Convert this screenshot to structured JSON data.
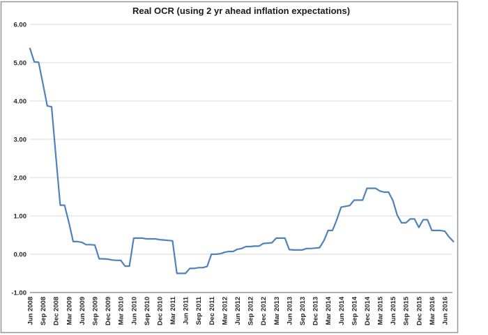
{
  "chart": {
    "title": "Real OCR (using 2 yr ahead inflation expectations)",
    "colors": {
      "line": "#4F81BD",
      "grid": "#D9D9D9",
      "axis": "#7F7F7F",
      "border": "#969696",
      "label": "#262626",
      "background": "#FFFFFF"
    },
    "chart_data": {
      "type": "line",
      "title": "Real OCR (using 2 yr ahead inflation expectations)",
      "xlabel": "",
      "ylabel": "",
      "ylim": [
        -1,
        6
      ],
      "grid": "horizontal",
      "legend": "none",
      "frequency": "monthly",
      "start_month": "Jun 2008",
      "end_month": "Aug 2016",
      "y_ticks": [
        6,
        5,
        4,
        3,
        2,
        1,
        0,
        -1
      ],
      "y_tick_labels": [
        "6.00",
        "5.00",
        "4.00",
        "3.00",
        "2.00",
        "1.00",
        "0.00",
        "-1.00"
      ],
      "x_tick_labels": [
        "Jun 2008",
        "Sep 2008",
        "Dec 2008",
        "Mar 2009",
        "Jun 2009",
        "Sep 2009",
        "Dec 2009",
        "Mar 2010",
        "Jun 2010",
        "Sep 2010",
        "Dec 2010",
        "Mar 2011",
        "Jun 2011",
        "Sep 2011",
        "Dec 2011",
        "Mar 2012",
        "Jun 2012",
        "Sep 2012",
        "Dec 2012",
        "Mar 2013",
        "Jun 2013",
        "Sep 2013",
        "Dec 2013",
        "Mar 2014",
        "Jun 2014",
        "Sep 2014",
        "Dec 2014",
        "Mar 2015",
        "Jun 2015",
        "Sep 2015",
        "Dec 2015",
        "Mar 2016",
        "Jun 2016"
      ],
      "x_tick_every_n_months": 3,
      "series": [
        {
          "name": "Real OCR",
          "values": [
            5.37,
            5.02,
            5.01,
            4.45,
            3.87,
            3.85,
            2.55,
            1.28,
            1.28,
            0.83,
            0.33,
            0.33,
            0.31,
            0.25,
            0.25,
            0.24,
            -0.12,
            -0.12,
            -0.13,
            -0.15,
            -0.16,
            -0.16,
            -0.31,
            -0.31,
            0.42,
            0.42,
            0.42,
            0.4,
            0.4,
            0.4,
            0.38,
            0.37,
            0.36,
            0.35,
            -0.5,
            -0.5,
            -0.5,
            -0.37,
            -0.37,
            -0.35,
            -0.35,
            -0.32,
            0.0,
            0.0,
            0.01,
            0.05,
            0.07,
            0.07,
            0.13,
            0.15,
            0.2,
            0.2,
            0.21,
            0.21,
            0.28,
            0.29,
            0.3,
            0.42,
            0.42,
            0.42,
            0.12,
            0.11,
            0.11,
            0.11,
            0.15,
            0.15,
            0.16,
            0.17,
            0.35,
            0.62,
            0.62,
            0.9,
            1.23,
            1.25,
            1.27,
            1.41,
            1.41,
            1.41,
            1.72,
            1.72,
            1.72,
            1.65,
            1.62,
            1.62,
            1.4,
            1.02,
            0.82,
            0.82,
            0.92,
            0.92,
            0.7,
            0.9,
            0.9,
            0.62,
            0.62,
            0.62,
            0.6,
            0.45,
            0.33
          ]
        }
      ]
    }
  }
}
